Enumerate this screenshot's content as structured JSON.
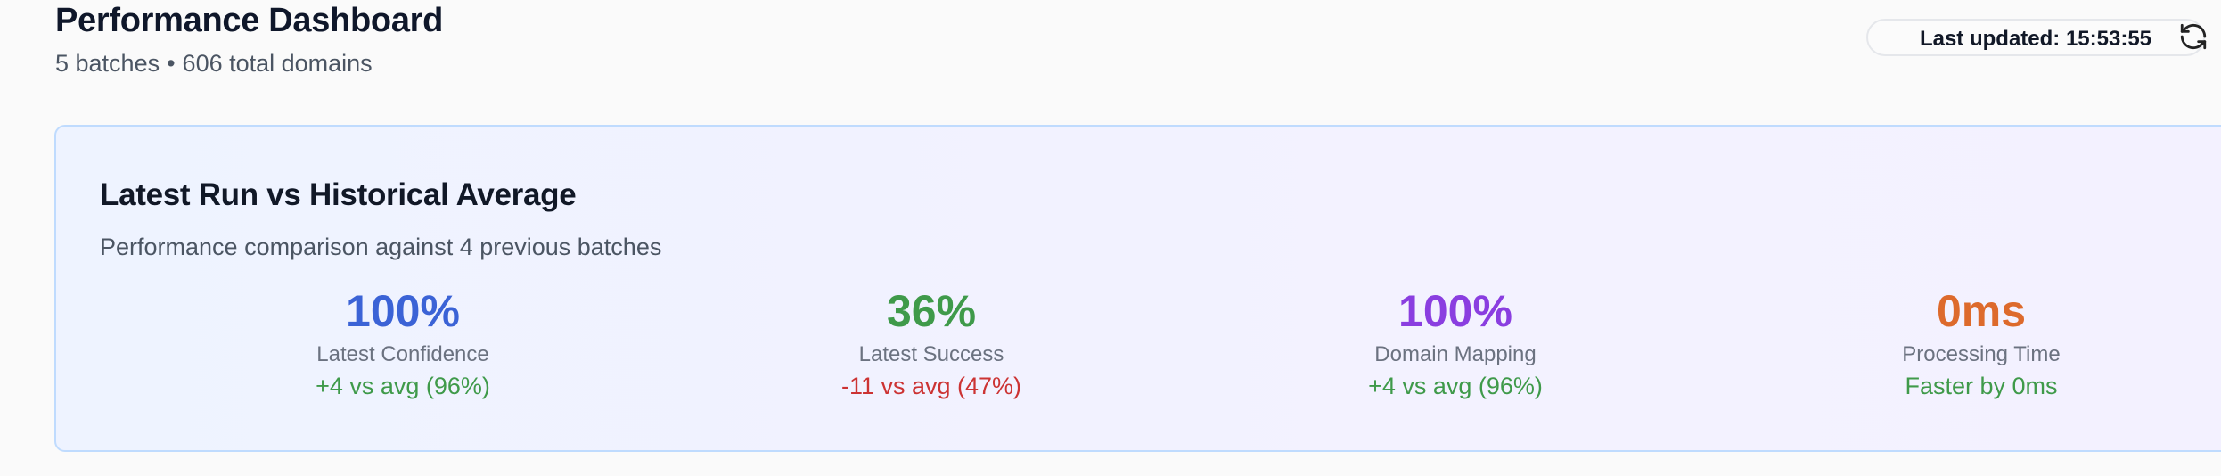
{
  "header": {
    "title": "Performance Dashboard",
    "batches": "5 batches",
    "separator": "•",
    "domains": "606 total domains",
    "last_updated": "Last updated: 15:53:55",
    "refresh_icon": "refresh-icon"
  },
  "card": {
    "title": "Latest Run vs Historical Average",
    "description": "Performance comparison against 4 previous batches",
    "metrics": [
      {
        "value": "100%",
        "label": "Latest Confidence",
        "delta": "+4 vs avg (96%)",
        "value_color": "#3b63d6",
        "delta_color": "#3f9a4a"
      },
      {
        "value": "36%",
        "label": "Latest Success",
        "delta": "-11 vs avg (47%)",
        "value_color": "#3f9a4a",
        "delta_color": "#cc3333"
      },
      {
        "value": "100%",
        "label": "Domain Mapping",
        "delta": "+4 vs avg (96%)",
        "value_color": "#8a3ee0",
        "delta_color": "#3f9a4a"
      },
      {
        "value": "0ms",
        "label": "Processing Time",
        "delta": "Faster by 0ms",
        "value_color": "#dd6a2c",
        "delta_color": "#3f9a4a"
      }
    ]
  }
}
